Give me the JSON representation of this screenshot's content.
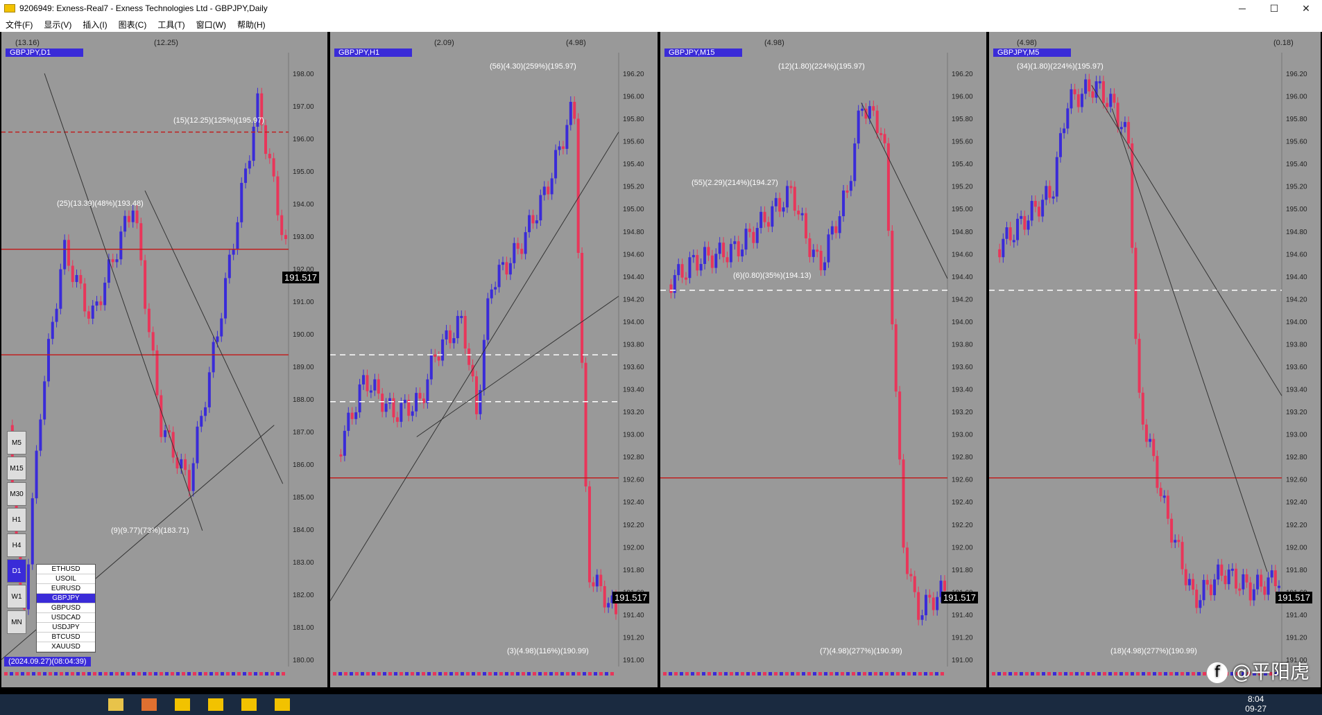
{
  "window": {
    "title": "9206949: Exness-Real7 - Exness Technologies Ltd - GBPJPY,Daily"
  },
  "menu": [
    "文件(F)",
    "显示(V)",
    "插入(I)",
    "图表(C)",
    "工具(T)",
    "窗口(W)",
    "帮助(H)"
  ],
  "panes": [
    {
      "symbol": "GBPJPY,D1",
      "ohlc": "(13.16)",
      "extra": "(12.25)",
      "price": "191.517"
    },
    {
      "symbol": "GBPJPY,H1",
      "ohlc": "(2.09)",
      "extra": "(4.98)",
      "price": "191.517"
    },
    {
      "symbol": "GBPJPY,M15",
      "ohlc": "(4.98)",
      "extra": "",
      "price": "191.517"
    },
    {
      "symbol": "GBPJPY,M5",
      "ohlc": "(4.98)",
      "extra": "(0.18)",
      "price": "191.517"
    }
  ],
  "annotations": {
    "d1_top": "(15)(12.25)(125%)(195.97)",
    "d1_mid": "(25)(13.39)(48%)(193.48)",
    "d1_low": "(9)(9.77)(73%)(183.71)",
    "h1_top": "(56)(4.30)(259%)(195.97)",
    "h1_low": "(3)(4.98)(116%)(190.99)",
    "m15_top": "(12)(1.80)(224%)(195.97)",
    "m15_mid": "(55)(2.29)(214%)(194.27)",
    "m15_mid2": "(6)(0.80)(35%)(194.13)",
    "m15_low": "(7)(4.98)(277%)(190.99)",
    "m5_top": "(34)(1.80)(224%)(195.97)",
    "m5_low": "(18)(4.98)(277%)(190.99)"
  },
  "symbol_list": [
    "ETHUSD",
    "USOIL",
    "EURUSD",
    "GBPJPY",
    "GBPUSD",
    "USDCAD",
    "USDJPY",
    "BTCUSD",
    "XAUUSD"
  ],
  "selected_symbol": "GBPJPY",
  "timeframes": [
    "M5",
    "M15",
    "M30",
    "H1",
    "H4",
    "D1",
    "W1",
    "MN"
  ],
  "selected_timeframe": "D1",
  "date_box": "(2024.09.27)(08:04:39)",
  "price_axis_h1": [
    "196.20",
    "196.00",
    "195.80",
    "195.60",
    "195.40",
    "195.20",
    "195.00",
    "194.80",
    "194.60",
    "194.40",
    "194.20",
    "194.00",
    "193.80",
    "193.60",
    "193.40",
    "193.20",
    "193.00",
    "192.80",
    "192.60",
    "192.40",
    "192.20",
    "192.00",
    "191.80",
    "191.60",
    "191.40",
    "191.20",
    "191.00"
  ],
  "price_axis_d1": [
    "198.00",
    "197.00",
    "196.00",
    "195.00",
    "194.00",
    "193.00",
    "192.00",
    "191.00",
    "190.00",
    "189.00",
    "188.00",
    "187.00",
    "186.00",
    "185.00",
    "184.00",
    "183.00",
    "182.00",
    "181.00",
    "180.00"
  ],
  "taskbar": {
    "time": "8:04",
    "date": "09-27"
  },
  "watermark": "@平阳虎",
  "colors": {
    "bull": "#3a2bd8",
    "bear": "#e8365a",
    "bg": "#999999",
    "label": "#3a2bd8"
  }
}
